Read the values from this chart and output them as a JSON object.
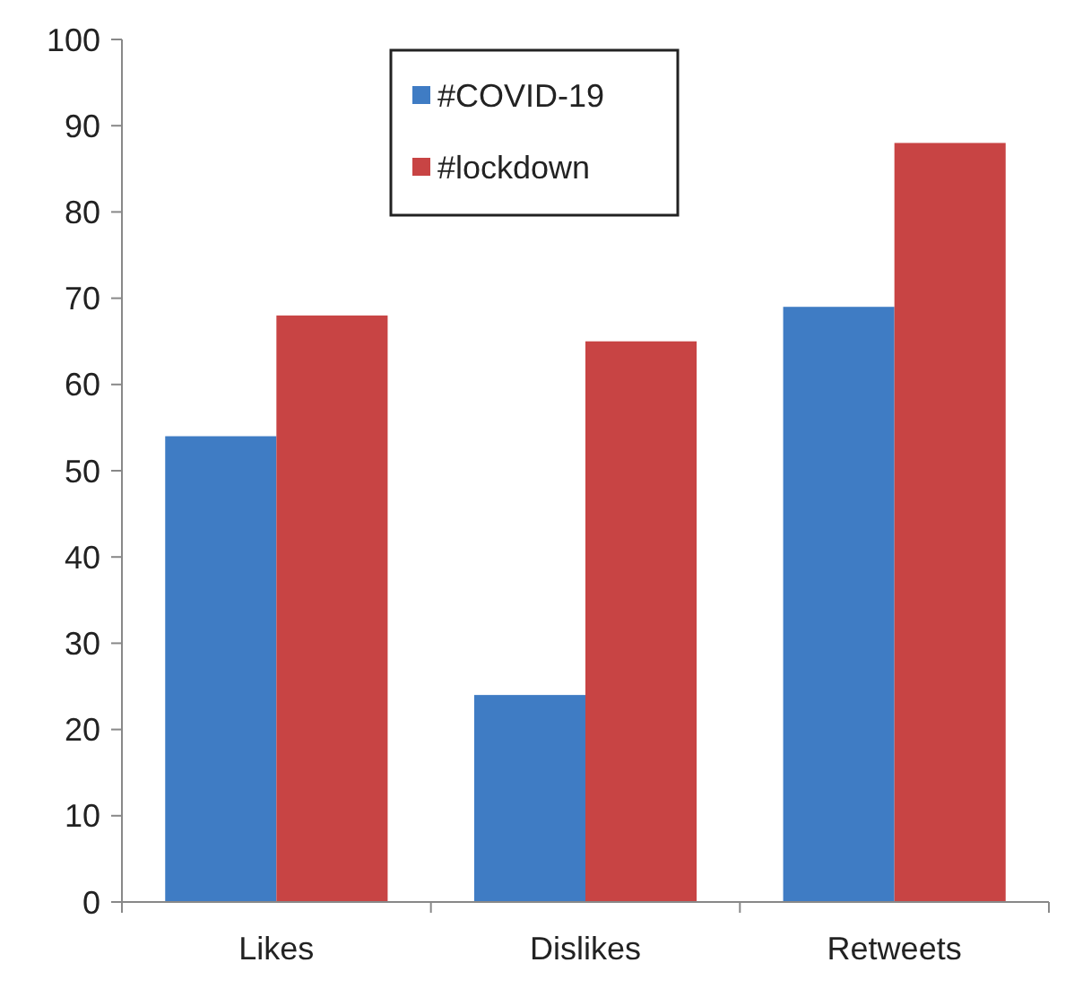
{
  "chart_data": {
    "type": "bar",
    "categories": [
      "Likes",
      "Dislikes",
      "Retweets"
    ],
    "series": [
      {
        "name": "#COVID-19",
        "color": "#3f7cc4",
        "values": [
          54,
          24,
          69
        ]
      },
      {
        "name": "#lockdown",
        "color": "#c84444",
        "values": [
          68,
          65,
          88
        ]
      }
    ],
    "ylim": [
      0,
      100
    ],
    "yticks": [
      0,
      10,
      20,
      30,
      40,
      50,
      60,
      70,
      80,
      90,
      100
    ],
    "grid": false,
    "legend": "top"
  }
}
